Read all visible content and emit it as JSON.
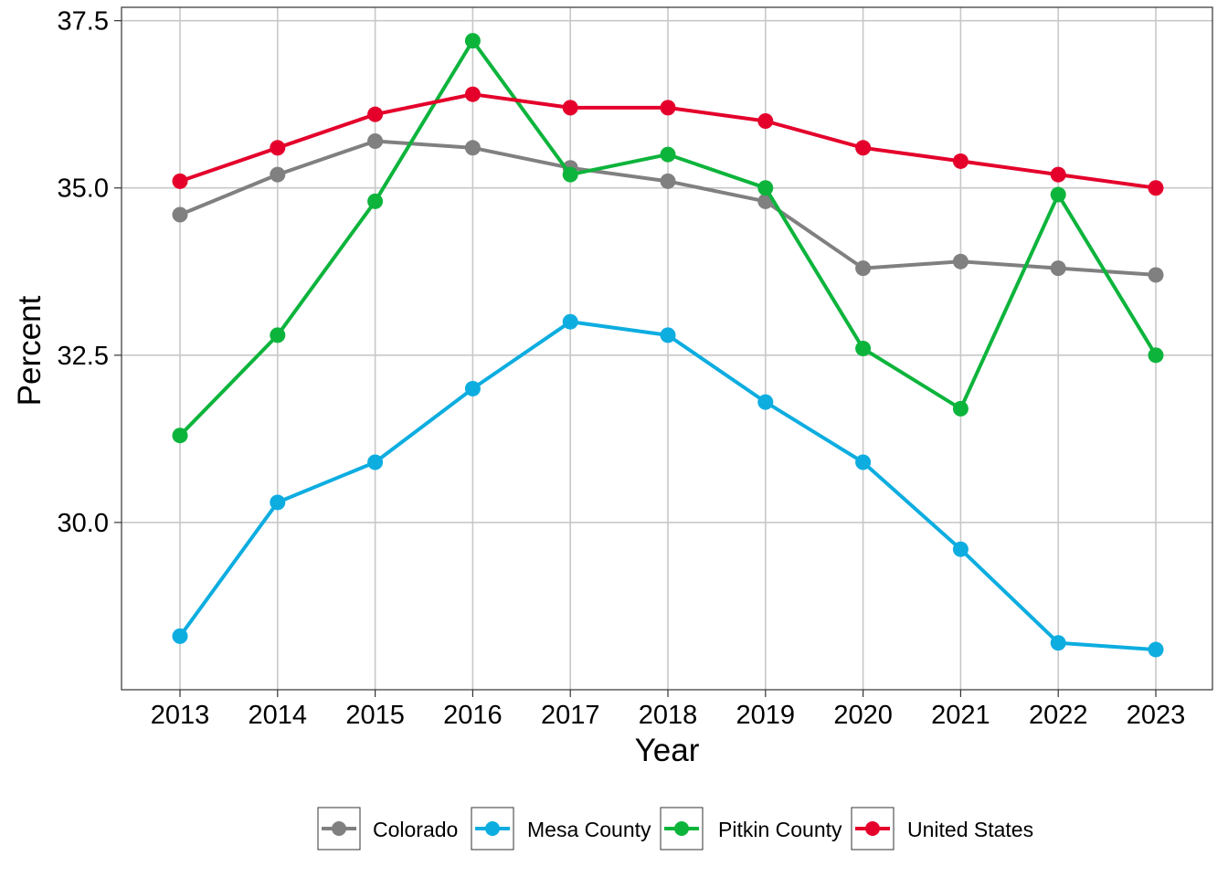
{
  "chart_data": {
    "type": "line",
    "title": "",
    "xlabel": "Year",
    "ylabel": "Percent",
    "x": [
      "2013",
      "2014",
      "2015",
      "2016",
      "2017",
      "2018",
      "2019",
      "2020",
      "2021",
      "2022",
      "2023"
    ],
    "ylim": [
      27.5,
      37.7
    ],
    "yticks": [
      30.0,
      32.5,
      35.0,
      37.5
    ],
    "ytick_labels": [
      "30.0",
      "32.5",
      "35.0",
      "37.5"
    ],
    "grid": true,
    "legend_position": "bottom",
    "series": [
      {
        "name": "Colorado",
        "color": "#808080",
        "values": [
          34.6,
          35.2,
          35.7,
          35.6,
          35.3,
          35.1,
          34.8,
          33.8,
          33.9,
          33.8,
          33.7
        ]
      },
      {
        "name": "Mesa County",
        "color": "#0DADE0",
        "values": [
          28.3,
          30.3,
          30.9,
          32.0,
          33.0,
          32.8,
          31.8,
          30.9,
          29.6,
          28.2,
          28.1
        ]
      },
      {
        "name": "Pitkin County",
        "color": "#0DB43C",
        "values": [
          31.3,
          32.8,
          34.8,
          37.2,
          35.2,
          35.5,
          35.0,
          32.6,
          31.7,
          34.9,
          32.5
        ]
      },
      {
        "name": "United States",
        "color": "#E4002B",
        "values": [
          35.1,
          35.6,
          36.1,
          36.4,
          36.2,
          36.2,
          36.0,
          35.6,
          35.4,
          35.2,
          35.0
        ]
      }
    ]
  }
}
